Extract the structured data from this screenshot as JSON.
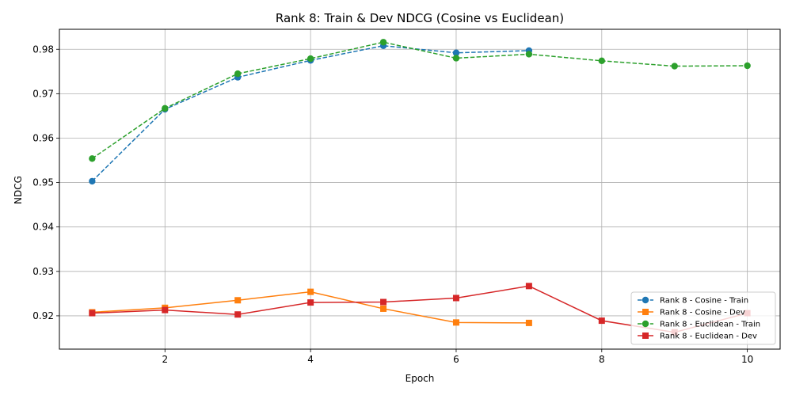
{
  "chart_data": {
    "type": "line",
    "title": "Rank 8: Train & Dev NDCG (Cosine vs Euclidean)",
    "xlabel": "Epoch",
    "ylabel": "NDCG",
    "xlim": [
      0.55,
      10.45
    ],
    "ylim": [
      0.9125,
      0.9845
    ],
    "xticks": [
      2,
      4,
      6,
      8,
      10
    ],
    "yticks": [
      0.92,
      0.93,
      0.94,
      0.95,
      0.96,
      0.97,
      0.98
    ],
    "ytick_labels": [
      "0.92",
      "0.93",
      "0.94",
      "0.95",
      "0.96",
      "0.97",
      "0.98"
    ],
    "grid": true,
    "legend_position": "lower-right",
    "series": [
      {
        "name": "Rank 8 - Cosine - Train",
        "color": "#1f77b4",
        "marker": "circle",
        "linestyle": "dashed",
        "x": [
          1,
          2,
          3,
          4,
          5,
          6,
          7
        ],
        "values": [
          0.9503,
          0.9665,
          0.9737,
          0.9775,
          0.9808,
          0.9792,
          0.9797
        ]
      },
      {
        "name": "Rank 8 - Cosine - Dev",
        "color": "#ff7f0e",
        "marker": "square",
        "linestyle": "solid",
        "x": [
          1,
          2,
          3,
          4,
          5,
          6,
          7
        ],
        "values": [
          0.9208,
          0.9218,
          0.9235,
          0.9254,
          0.9216,
          0.9185,
          0.9184
        ]
      },
      {
        "name": "Rank 8 - Euclidean - Train",
        "color": "#2ca02c",
        "marker": "circle",
        "linestyle": "dashed",
        "x": [
          1,
          2,
          3,
          4,
          5,
          6,
          7,
          8,
          9,
          10
        ],
        "values": [
          0.9554,
          0.9667,
          0.9745,
          0.9779,
          0.9816,
          0.978,
          0.9789,
          0.9774,
          0.9762,
          0.9763
        ]
      },
      {
        "name": "Rank 8 - Euclidean - Dev",
        "color": "#d62728",
        "marker": "square",
        "linestyle": "solid",
        "x": [
          1,
          2,
          3,
          4,
          5,
          6,
          7,
          8,
          9,
          10
        ],
        "values": [
          0.9206,
          0.9213,
          0.9203,
          0.923,
          0.9231,
          0.924,
          0.9267,
          0.9189,
          0.9163,
          0.9206
        ]
      }
    ]
  }
}
